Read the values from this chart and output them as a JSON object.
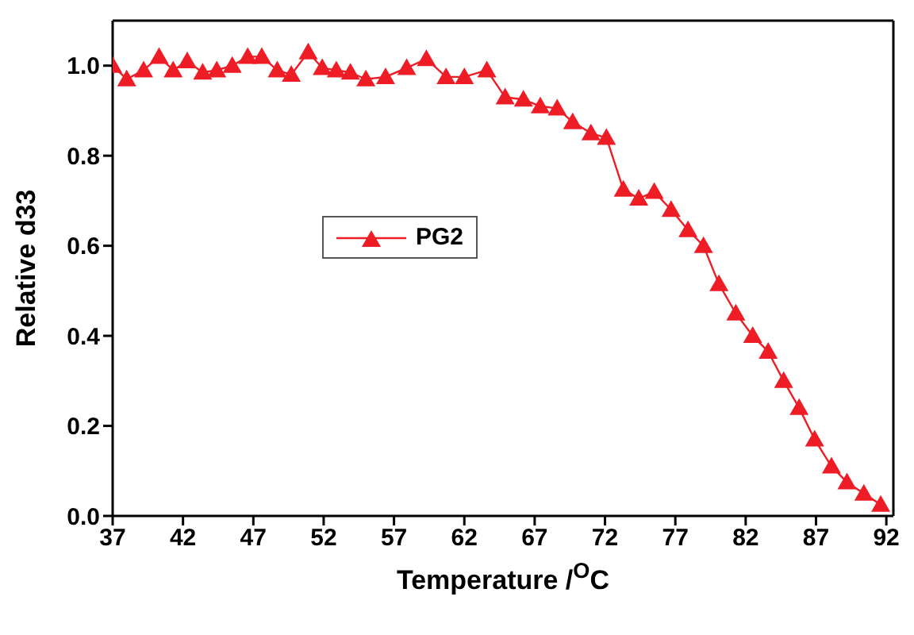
{
  "chart_data": {
    "type": "line",
    "xlabel": "Temperature /$^{O}$C",
    "ylabel": "Relative d33",
    "xlim": [
      37,
      92.5
    ],
    "xticks": [
      37,
      42,
      47,
      52,
      57,
      62,
      67,
      72,
      77,
      82,
      87,
      92
    ],
    "ylim": [
      0,
      1.1
    ],
    "yticks": [
      {
        "value": 0,
        "label": "0.0"
      },
      {
        "value": 0.2,
        "label": "0.2"
      },
      {
        "value": 0.4,
        "label": "0.4"
      },
      {
        "value": 0.6,
        "label": "0.6"
      },
      {
        "value": 0.8,
        "label": "0.8"
      },
      {
        "value": 1,
        "label": "1.0"
      }
    ],
    "grid": false,
    "legend": "center left",
    "marker": "triangle",
    "line_style": "solid",
    "series": [
      {
        "name": "PG2",
        "color": "#ee1c25",
        "x": [
          37,
          38,
          39.2,
          40.3,
          41.3,
          42.3,
          43.4,
          44.4,
          45.5,
          46.6,
          47.6,
          48.7,
          49.7,
          50.9,
          51.9,
          52.9,
          53.9,
          55,
          56.4,
          57.9,
          59.3,
          60.7,
          62,
          63.6,
          64.9,
          66.2,
          67.4,
          68.6,
          69.7,
          71,
          72.1,
          73.3,
          74.4,
          75.5,
          76.7,
          77.9,
          79,
          80.1,
          81.3,
          82.5,
          83.6,
          84.7,
          85.8,
          86.9,
          88.1,
          89.2,
          90.4,
          91.6
        ],
        "values": [
          1.0,
          0.97,
          0.99,
          1.02,
          0.99,
          1.01,
          0.985,
          0.99,
          1.0,
          1.02,
          1.02,
          0.99,
          0.98,
          1.03,
          0.995,
          0.99,
          0.985,
          0.97,
          0.975,
          0.995,
          1.015,
          0.975,
          0.975,
          0.99,
          0.93,
          0.925,
          0.91,
          0.905,
          0.875,
          0.85,
          0.84,
          0.725,
          0.705,
          0.72,
          0.68,
          0.635,
          0.6,
          0.515,
          0.45,
          0.4,
          0.365,
          0.3,
          0.24,
          0.17,
          0.11,
          0.075,
          0.05,
          0.025
        ]
      }
    ]
  }
}
